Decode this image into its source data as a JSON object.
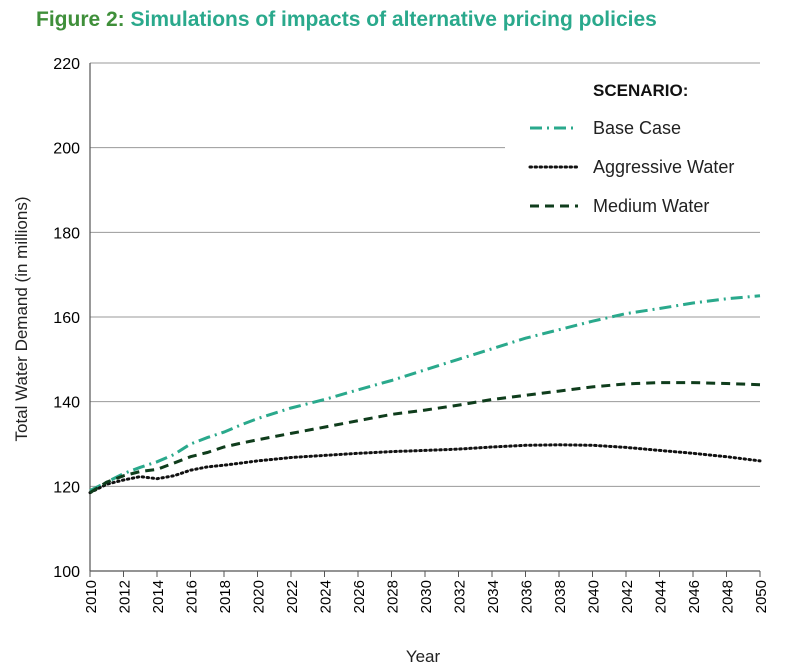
{
  "title": {
    "lead": "Figure 2:",
    "main": "Simulations of impacts of alternative pricing policies"
  },
  "chart_data": {
    "type": "line",
    "xlabel": "Year",
    "ylabel": "Total Water Demand (in millions)",
    "xlim": [
      2010,
      2050
    ],
    "ylim": [
      100,
      220
    ],
    "yticks": [
      100,
      120,
      140,
      160,
      180,
      200,
      220
    ],
    "xticks": [
      2010,
      2012,
      2014,
      2016,
      2018,
      2020,
      2022,
      2024,
      2026,
      2028,
      2030,
      2032,
      2034,
      2036,
      2038,
      2040,
      2042,
      2044,
      2046,
      2048,
      2050
    ],
    "grid": "horizontal",
    "legend": {
      "title": "SCENARIO:",
      "position": "top-right"
    },
    "x": [
      2010,
      2011,
      2012,
      2013,
      2014,
      2015,
      2016,
      2017,
      2018,
      2019,
      2020,
      2022,
      2024,
      2026,
      2028,
      2030,
      2032,
      2034,
      2036,
      2038,
      2040,
      2042,
      2044,
      2046,
      2048,
      2050
    ],
    "series": [
      {
        "name": "Base Case",
        "color": "#2aa98c",
        "dash": "dash-dot",
        "values": [
          119,
          121,
          123,
          124.5,
          125.8,
          127.5,
          130,
          131.5,
          132.8,
          134.5,
          136,
          138.5,
          140.5,
          142.8,
          145,
          147.5,
          150,
          152.5,
          155,
          157,
          159,
          160.8,
          162,
          163.3,
          164.3,
          165
        ]
      },
      {
        "name": "Aggressive Water",
        "color": "#111111",
        "dash": "dotted",
        "values": [
          118.5,
          120.5,
          121.5,
          122.3,
          121.8,
          122.5,
          123.8,
          124.6,
          125,
          125.5,
          126,
          126.8,
          127.3,
          127.8,
          128.2,
          128.5,
          128.8,
          129.3,
          129.7,
          129.8,
          129.7,
          129.2,
          128.5,
          127.8,
          127,
          126
        ]
      },
      {
        "name": "Medium Water",
        "color": "#0f3d1c",
        "dash": "dashed",
        "values": [
          118.5,
          121,
          122.5,
          123.5,
          124,
          125.5,
          127,
          128,
          129.3,
          130.2,
          131,
          132.5,
          134,
          135.5,
          137,
          138,
          139.2,
          140.5,
          141.5,
          142.5,
          143.5,
          144.2,
          144.5,
          144.5,
          144.3,
          144
        ]
      }
    ]
  }
}
